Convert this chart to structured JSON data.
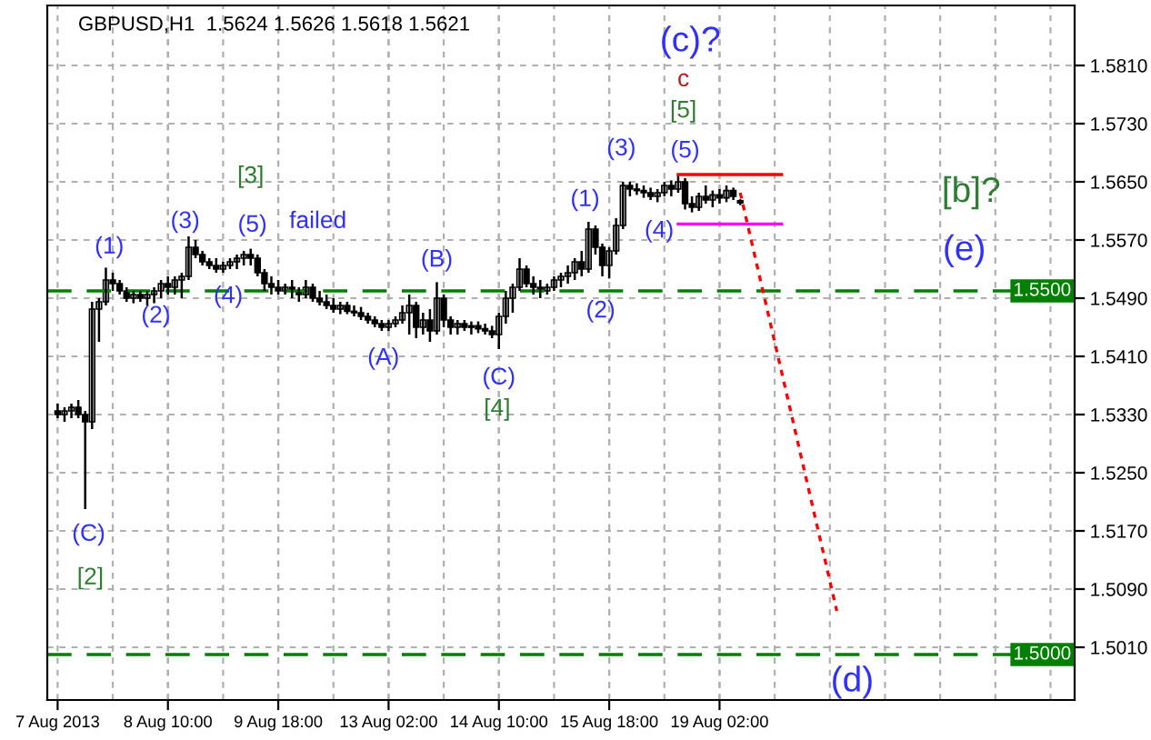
{
  "chart_data": {
    "type": "candlestick",
    "title": "GBPUSD,H1  1.5624 1.5626 1.5618 1.5621",
    "categories": [
      "7 Aug 2013",
      null,
      null,
      null,
      null,
      null,
      null,
      null,
      null,
      null,
      null,
      null,
      null,
      null,
      null,
      null,
      "8 Aug 10:00",
      null,
      null,
      null,
      null,
      null,
      null,
      null,
      null,
      null,
      null,
      null,
      null,
      null,
      null,
      null,
      "9 Aug 18:00",
      null,
      null,
      null,
      null,
      null,
      null,
      null,
      null,
      null,
      null,
      null,
      null,
      null,
      null,
      null,
      "13 Aug 02:00",
      null,
      null,
      null,
      null,
      null,
      null,
      null,
      null,
      null,
      null,
      null,
      null,
      null,
      null,
      null,
      "14 Aug 10:00",
      null,
      null,
      null,
      null,
      null,
      null,
      null,
      null,
      null,
      null,
      null,
      null,
      null,
      null,
      null,
      "15 Aug 18:00",
      null,
      null,
      null,
      null,
      null,
      null,
      null,
      null,
      null,
      null,
      null,
      null,
      null,
      null,
      null,
      "19 Aug 02:00",
      null,
      null,
      null,
      null,
      null,
      null,
      null,
      null,
      null,
      null,
      null,
      null,
      null,
      null,
      null,
      null,
      null,
      null,
      null,
      null,
      null,
      null,
      null,
      null,
      null,
      null,
      null,
      null,
      null,
      null,
      null,
      null,
      null,
      null,
      null,
      null,
      null,
      null,
      null,
      null,
      null,
      null,
      null,
      null,
      null,
      null,
      null,
      null,
      null,
      null,
      null
    ],
    "ohlc": [
      [
        1.5335,
        1.5345,
        1.5325,
        1.533
      ],
      [
        1.533,
        1.534,
        1.532,
        1.5335
      ],
      [
        1.5335,
        1.5345,
        1.5325,
        1.534
      ],
      [
        1.534,
        1.535,
        1.5325,
        1.533
      ],
      [
        1.533,
        1.5335,
        1.52,
        1.532
      ],
      [
        1.532,
        1.5485,
        1.531,
        1.5475
      ],
      [
        1.5475,
        1.549,
        1.543,
        1.5485
      ],
      [
        1.5485,
        1.5532,
        1.548,
        1.5515
      ],
      [
        1.5515,
        1.5525,
        1.55,
        1.551
      ],
      [
        1.551,
        1.5515,
        1.5495,
        1.55
      ],
      [
        1.55,
        1.5505,
        1.5485,
        1.549
      ],
      [
        1.549,
        1.55,
        1.5483,
        1.5495
      ],
      [
        1.5495,
        1.55,
        1.5485,
        1.549
      ],
      [
        1.549,
        1.55,
        1.548,
        1.5495
      ],
      [
        1.5495,
        1.5505,
        1.5483,
        1.55
      ],
      [
        1.55,
        1.5515,
        1.549,
        1.551
      ],
      [
        1.551,
        1.552,
        1.5495,
        1.5505
      ],
      [
        1.5505,
        1.552,
        1.5495,
        1.5515
      ],
      [
        1.5515,
        1.5525,
        1.549,
        1.552
      ],
      [
        1.552,
        1.5575,
        1.5515,
        1.556
      ],
      [
        1.556,
        1.557,
        1.5545,
        1.555
      ],
      [
        1.555,
        1.5555,
        1.5535,
        1.554
      ],
      [
        1.554,
        1.5545,
        1.553,
        1.5535
      ],
      [
        1.5535,
        1.5545,
        1.5525,
        1.553
      ],
      [
        1.553,
        1.554,
        1.5525,
        1.5535
      ],
      [
        1.5535,
        1.5545,
        1.553,
        1.554
      ],
      [
        1.554,
        1.555,
        1.553,
        1.5545
      ],
      [
        1.5545,
        1.5555,
        1.5535,
        1.555
      ],
      [
        1.555,
        1.5558,
        1.5535,
        1.5545
      ],
      [
        1.5545,
        1.555,
        1.552,
        1.5525
      ],
      [
        1.5525,
        1.553,
        1.55,
        1.551
      ],
      [
        1.551,
        1.552,
        1.5495,
        1.5505
      ],
      [
        1.5505,
        1.5515,
        1.5495,
        1.55
      ],
      [
        1.55,
        1.551,
        1.5495,
        1.5505
      ],
      [
        1.5505,
        1.5515,
        1.549,
        1.55
      ],
      [
        1.55,
        1.5505,
        1.5485,
        1.5495
      ],
      [
        1.5495,
        1.5515,
        1.549,
        1.5505
      ],
      [
        1.5505,
        1.551,
        1.5485,
        1.549
      ],
      [
        1.549,
        1.55,
        1.548,
        1.5485
      ],
      [
        1.5485,
        1.5495,
        1.5475,
        1.548
      ],
      [
        1.548,
        1.549,
        1.547,
        1.5475
      ],
      [
        1.5475,
        1.5485,
        1.5468,
        1.548
      ],
      [
        1.548,
        1.5485,
        1.5468,
        1.5472
      ],
      [
        1.5472,
        1.548,
        1.5465,
        1.547
      ],
      [
        1.547,
        1.5478,
        1.546,
        1.5465
      ],
      [
        1.5465,
        1.547,
        1.5455,
        1.546
      ],
      [
        1.546,
        1.5465,
        1.545,
        1.5455
      ],
      [
        1.5455,
        1.546,
        1.5445,
        1.545
      ],
      [
        1.545,
        1.546,
        1.5445,
        1.5455
      ],
      [
        1.5455,
        1.5465,
        1.545,
        1.546
      ],
      [
        1.546,
        1.548,
        1.5455,
        1.547
      ],
      [
        1.547,
        1.5495,
        1.544,
        1.548
      ],
      [
        1.548,
        1.5485,
        1.5435,
        1.545
      ],
      [
        1.545,
        1.547,
        1.544,
        1.546
      ],
      [
        1.546,
        1.5475,
        1.543,
        1.5445
      ],
      [
        1.5445,
        1.5512,
        1.544,
        1.549
      ],
      [
        1.549,
        1.5495,
        1.545,
        1.546
      ],
      [
        1.546,
        1.5465,
        1.544,
        1.545
      ],
      [
        1.545,
        1.546,
        1.544,
        1.5455
      ],
      [
        1.5455,
        1.546,
        1.5445,
        1.545
      ],
      [
        1.545,
        1.5458,
        1.544,
        1.5452
      ],
      [
        1.5452,
        1.5458,
        1.5442,
        1.5448
      ],
      [
        1.5448,
        1.5455,
        1.544,
        1.5445
      ],
      [
        1.5445,
        1.5452,
        1.5435,
        1.544
      ],
      [
        1.544,
        1.547,
        1.542,
        1.5465
      ],
      [
        1.5465,
        1.55,
        1.5455,
        1.549
      ],
      [
        1.549,
        1.551,
        1.547,
        1.5505
      ],
      [
        1.5505,
        1.5545,
        1.55,
        1.553
      ],
      [
        1.553,
        1.5535,
        1.5505,
        1.551
      ],
      [
        1.551,
        1.552,
        1.5495,
        1.5505
      ],
      [
        1.5505,
        1.5515,
        1.549,
        1.55
      ],
      [
        1.55,
        1.551,
        1.5495,
        1.5505
      ],
      [
        1.5505,
        1.552,
        1.55,
        1.5515
      ],
      [
        1.5515,
        1.5525,
        1.5505,
        1.552
      ],
      [
        1.552,
        1.5535,
        1.551,
        1.5525
      ],
      [
        1.5525,
        1.5545,
        1.5515,
        1.554
      ],
      [
        1.554,
        1.5555,
        1.552,
        1.553
      ],
      [
        1.553,
        1.5595,
        1.5525,
        1.5585
      ],
      [
        1.5585,
        1.559,
        1.555,
        1.556
      ],
      [
        1.556,
        1.5565,
        1.552,
        1.5535
      ],
      [
        1.5535,
        1.556,
        1.5517,
        1.5555
      ],
      [
        1.5555,
        1.56,
        1.555,
        1.559
      ],
      [
        1.559,
        1.565,
        1.5585,
        1.5645
      ],
      [
        1.5645,
        1.565,
        1.563,
        1.564
      ],
      [
        1.564,
        1.5648,
        1.5632,
        1.5638
      ],
      [
        1.5638,
        1.5645,
        1.5628,
        1.5635
      ],
      [
        1.5635,
        1.5642,
        1.5625,
        1.563
      ],
      [
        1.563,
        1.564,
        1.5622,
        1.5635
      ],
      [
        1.5635,
        1.565,
        1.563,
        1.5645
      ],
      [
        1.5645,
        1.5652,
        1.563,
        1.564
      ],
      [
        1.564,
        1.5658,
        1.5635,
        1.565
      ],
      [
        1.565,
        1.5655,
        1.5612,
        1.562
      ],
      [
        1.562,
        1.563,
        1.5608,
        1.5615
      ],
      [
        1.5615,
        1.5635,
        1.561,
        1.563
      ],
      [
        1.563,
        1.5645,
        1.562,
        1.5625
      ],
      [
        1.5625,
        1.5638,
        1.5615,
        1.5632
      ],
      [
        1.5632,
        1.564,
        1.562,
        1.5628
      ],
      [
        1.5628,
        1.5645,
        1.5622,
        1.5638
      ],
      [
        1.5638,
        1.5642,
        1.5625,
        1.563
      ],
      [
        1.5624,
        1.5626,
        1.5618,
        1.5621
      ],
      null,
      null,
      null,
      null,
      null,
      null,
      null,
      null,
      null,
      null,
      null,
      null,
      null,
      null,
      null,
      null,
      null,
      null,
      null,
      null,
      null,
      null,
      null,
      null,
      null,
      null,
      null,
      null,
      null,
      null,
      null,
      null,
      null,
      null,
      null,
      null,
      null,
      null,
      null,
      null,
      null,
      null,
      null,
      null,
      null,
      null,
      null,
      null
    ],
    "series": [
      {
        "type": "line",
        "color": "#ff0000",
        "line_style": "solid",
        "values": [
          null,
          null,
          null,
          null,
          null,
          null,
          null,
          null,
          null,
          null,
          null,
          null,
          null,
          null,
          null,
          null,
          null,
          null,
          null,
          null,
          null,
          null,
          null,
          null,
          null,
          null,
          null,
          null,
          null,
          null,
          null,
          null,
          null,
          null,
          null,
          null,
          null,
          null,
          null,
          null,
          null,
          null,
          null,
          null,
          null,
          null,
          null,
          null,
          null,
          null,
          null,
          null,
          null,
          null,
          null,
          null,
          null,
          null,
          null,
          null,
          null,
          null,
          null,
          null,
          null,
          null,
          null,
          null,
          null,
          null,
          null,
          null,
          null,
          null,
          null,
          null,
          null,
          null,
          null,
          null,
          null,
          null,
          null,
          null,
          null,
          null,
          null,
          null,
          null,
          null,
          1.566,
          null,
          null,
          null,
          null,
          null,
          null,
          null,
          null,
          null,
          null,
          null,
          null,
          null,
          null,
          1.566,
          null,
          null,
          null,
          null,
          null,
          null,
          null,
          null,
          null,
          null,
          null,
          null,
          null,
          null,
          null,
          null,
          null,
          null,
          null,
          null,
          null,
          null,
          null,
          null,
          null,
          null,
          null,
          null,
          null,
          null,
          null,
          null,
          null,
          null,
          null,
          null,
          null,
          null,
          null,
          null,
          null,
          null
        ]
      },
      {
        "type": "line",
        "color": "#ff00ff",
        "line_style": "solid",
        "values": [
          null,
          null,
          null,
          null,
          null,
          null,
          null,
          null,
          null,
          null,
          null,
          null,
          null,
          null,
          null,
          null,
          null,
          null,
          null,
          null,
          null,
          null,
          null,
          null,
          null,
          null,
          null,
          null,
          null,
          null,
          null,
          null,
          null,
          null,
          null,
          null,
          null,
          null,
          null,
          null,
          null,
          null,
          null,
          null,
          null,
          null,
          null,
          null,
          null,
          null,
          null,
          null,
          null,
          null,
          null,
          null,
          null,
          null,
          null,
          null,
          null,
          null,
          null,
          null,
          null,
          null,
          null,
          null,
          null,
          null,
          null,
          null,
          null,
          null,
          null,
          null,
          null,
          null,
          null,
          null,
          null,
          null,
          null,
          null,
          null,
          null,
          null,
          null,
          null,
          null,
          1.5592,
          null,
          null,
          null,
          null,
          null,
          null,
          null,
          null,
          null,
          null,
          null,
          null,
          null,
          null,
          1.5592,
          null,
          null,
          null,
          null,
          null,
          null,
          null,
          null,
          null,
          null,
          null,
          null,
          null,
          null,
          null,
          null,
          null,
          null,
          null,
          null,
          null,
          null,
          null,
          null,
          null,
          null,
          null,
          null,
          null,
          null,
          null,
          null,
          null,
          null,
          null,
          null,
          null,
          null,
          null,
          null,
          null,
          null
        ]
      },
      {
        "type": "line",
        "color": "#ff0000",
        "line_style": "dotted",
        "values": [
          null,
          null,
          null,
          null,
          null,
          null,
          null,
          null,
          null,
          null,
          null,
          null,
          null,
          null,
          null,
          null,
          null,
          null,
          null,
          null,
          null,
          null,
          null,
          null,
          null,
          null,
          null,
          null,
          null,
          null,
          null,
          null,
          null,
          null,
          null,
          null,
          null,
          null,
          null,
          null,
          null,
          null,
          null,
          null,
          null,
          null,
          null,
          null,
          null,
          null,
          null,
          null,
          null,
          null,
          null,
          null,
          null,
          null,
          null,
          null,
          null,
          null,
          null,
          null,
          null,
          null,
          null,
          null,
          null,
          null,
          null,
          null,
          null,
          null,
          null,
          null,
          null,
          null,
          null,
          null,
          null,
          null,
          null,
          null,
          null,
          null,
          null,
          null,
          null,
          null,
          null,
          null,
          null,
          null,
          null,
          null,
          null,
          null,
          null,
          1.5635,
          null,
          null,
          null,
          null,
          null,
          null,
          null,
          null,
          null,
          null,
          null,
          null,
          null,
          1.506,
          null,
          null,
          null,
          null,
          null,
          null,
          null,
          null,
          null,
          null,
          null,
          null,
          null,
          null,
          null,
          null,
          null,
          null,
          null,
          null,
          null,
          null,
          null,
          null,
          null,
          null,
          null,
          null,
          null,
          null,
          null,
          null,
          null,
          null
        ]
      }
    ],
    "ref_lines": [
      {
        "axis": "y",
        "value": 1.55,
        "label": "1.5500",
        "color": "#008000",
        "line_style": "dashed"
      },
      {
        "axis": "y",
        "value": 1.5,
        "label": "1.5000",
        "color": "#008000",
        "line_style": "dashed"
      }
    ],
    "ylim": [
      1.49375,
      1.58925
    ],
    "yticks": [
      {
        "value": 1.501,
        "label": "1.5010"
      },
      {
        "value": 1.509,
        "label": "1.5090"
      },
      {
        "value": 1.517,
        "label": "1.5170"
      },
      {
        "value": 1.525,
        "label": "1.5250"
      },
      {
        "value": 1.533,
        "label": "1.5330"
      },
      {
        "value": 1.541,
        "label": "1.5410"
      },
      {
        "value": 1.549,
        "label": "1.5490"
      },
      {
        "value": 1.557,
        "label": "1.5570"
      },
      {
        "value": 1.565,
        "label": "1.5650"
      },
      {
        "value": 1.573,
        "label": "1.5730"
      },
      {
        "value": 1.581,
        "label": "1.5810"
      }
    ],
    "grid": true,
    "annotations": [
      "(1)",
      "(2)",
      "(3)",
      "(4)",
      "(5)",
      "[3]",
      "failed",
      "(A)",
      "(B)",
      "(C)",
      "[4]",
      "(C)",
      "[2]",
      "(1)",
      "(2)",
      "(3)",
      "(4)",
      "(5)",
      "[5]",
      "c",
      "(c)?",
      "[b]?",
      "(e)",
      "(d)"
    ]
  }
}
